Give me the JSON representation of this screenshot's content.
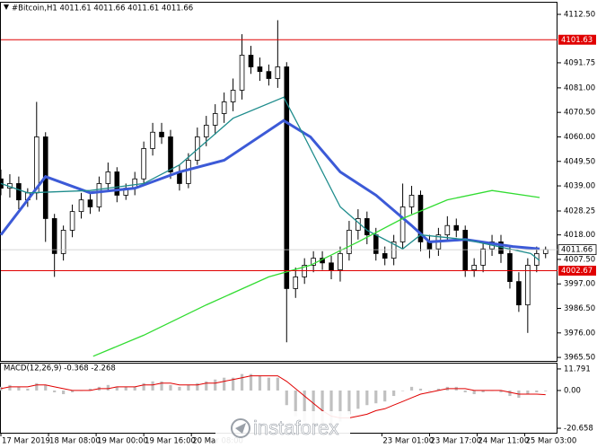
{
  "chart_data": [
    {
      "type": "candlestick",
      "title": "#Bitcoin,H1 4011.61 4011.66 4011.61 4011.66",
      "x": [
        0,
        3,
        6,
        9,
        12,
        15,
        18,
        21,
        24,
        27,
        30,
        33,
        36,
        39,
        42,
        45,
        48,
        51,
        54,
        57,
        60,
        63,
        66,
        69,
        72,
        75,
        78,
        81,
        84,
        87,
        90,
        93,
        96,
        99,
        102,
        105,
        108,
        111,
        114,
        117,
        120,
        123,
        126,
        129,
        132,
        135,
        138,
        141,
        144,
        147,
        150,
        153,
        156,
        159,
        162,
        165,
        168,
        171,
        174,
        177,
        180,
        183
      ],
      "open": [
        4042,
        4038,
        4040,
        4033,
        4036,
        4060,
        4025,
        4010,
        4020,
        4028,
        4033,
        4030,
        4040,
        4045,
        4035,
        4038,
        4042,
        4055,
        4062,
        4060,
        4045,
        4040,
        4050,
        4060,
        4065,
        4070,
        4075,
        4080,
        4095,
        4090,
        4088,
        4085,
        4090,
        3995,
        4000,
        4005,
        4008,
        4006,
        4003,
        4010,
        4020,
        4025,
        4018,
        4010,
        4008,
        4015,
        4030,
        4035,
        4015,
        4012,
        4018,
        4022,
        4020,
        4003,
        4005,
        4012,
        4015,
        4010,
        3998,
        3988,
        4005,
        4010
      ],
      "high": [
        4046,
        4044,
        4043,
        4038,
        4075,
        4062,
        4027,
        4022,
        4031,
        4036,
        4036,
        4043,
        4049,
        4047,
        4040,
        4045,
        4058,
        4066,
        4066,
        4063,
        4048,
        4053,
        4064,
        4069,
        4074,
        4079,
        4085,
        4104,
        4099,
        4094,
        4091,
        4110,
        4092,
        4004,
        4008,
        4011,
        4011,
        4009,
        4013,
        4024,
        4029,
        4028,
        4021,
        4013,
        4018,
        4040,
        4039,
        4037,
        4018,
        4021,
        4026,
        4025,
        4022,
        4008,
        4015,
        4018,
        4018,
        4013,
        4002,
        4008,
        4013,
        4013
      ],
      "low": [
        4035,
        4034,
        4029,
        4030,
        4033,
        4015,
        4000,
        4007,
        4017,
        4025,
        4027,
        4028,
        4037,
        4032,
        4033,
        4035,
        4040,
        4052,
        4057,
        4042,
        4037,
        4038,
        4048,
        4056,
        4061,
        4066,
        4071,
        4076,
        4087,
        4084,
        4082,
        4081,
        3972,
        3991,
        3997,
        4002,
        4003,
        3999,
        3998,
        4007,
        4016,
        4014,
        4007,
        4005,
        4005,
        4012,
        4027,
        4011,
        4008,
        4009,
        4015,
        4017,
        4000,
        4000,
        4002,
        4009,
        4006,
        3995,
        3985,
        3976,
        4002,
        4008
      ],
      "close": [
        4038,
        4040,
        4033,
        4036,
        4060,
        4025,
        4010,
        4020,
        4028,
        4033,
        4030,
        4040,
        4045,
        4035,
        4038,
        4042,
        4055,
        4062,
        4060,
        4045,
        4040,
        4050,
        4060,
        4065,
        4070,
        4075,
        4080,
        4095,
        4090,
        4088,
        4085,
        4090,
        3995,
        4000,
        4005,
        4008,
        4006,
        4003,
        4010,
        4020,
        4025,
        4018,
        4010,
        4008,
        4015,
        4030,
        4035,
        4015,
        4012,
        4018,
        4022,
        4020,
        4003,
        4005,
        4012,
        4015,
        4010,
        3998,
        3988,
        4005,
        4010,
        4011.66
      ],
      "color_up": "#ffffff",
      "color_down": "#000000",
      "series": [
        {
          "color": "#3c5ad7",
          "x": [
            0,
            15,
            30,
            45,
            60,
            75,
            95,
            104,
            114,
            126,
            138,
            144,
            156,
            172,
            181
          ],
          "values": [
            4018,
            4043,
            4036,
            4038,
            4045,
            4050,
            4067,
            4060,
            4045,
            4035,
            4022,
            4015,
            4016,
            4013,
            4012
          ]
        },
        {
          "color": "#1e8c8c",
          "x": [
            0,
            9,
            30,
            48,
            60,
            78,
            95,
            102,
            114,
            123,
            135,
            141,
            156,
            178,
            181
          ],
          "values": [
            4040,
            4036,
            4037,
            4040,
            4048,
            4068,
            4077,
            4060,
            4030,
            4020,
            4012,
            4018,
            4016,
            4010,
            4007
          ]
        },
        {
          "color": "#32dc32",
          "x": [
            31,
            48,
            69,
            90,
            104,
            120,
            135,
            150,
            165,
            181
          ],
          "values": [
            3966,
            3975,
            3988,
            4000,
            4005,
            4015,
            4025,
            4033,
            4037,
            4034
          ]
        }
      ],
      "hlines": [
        {
          "value": 4101.63,
          "color": "#e00000"
        },
        {
          "value": 4002.67,
          "color": "#e00000"
        }
      ],
      "last_price": 4011.66,
      "xlim": [
        0,
        187
      ],
      "ylim": [
        3964,
        4117.5
      ],
      "yticks": [
        {
          "value": 4112.5,
          "label": "4112.50"
        },
        4091.75,
        {
          "value": 4081,
          "label": "4081.00"
        },
        {
          "value": 4070.5,
          "label": "4070.50"
        },
        {
          "value": 4060,
          "label": "4060.00"
        },
        {
          "value": 4049.5,
          "label": "4049.50"
        },
        {
          "value": 4039,
          "label": "4039.00"
        },
        4028.25,
        {
          "value": 4018,
          "label": "4018.00"
        },
        {
          "value": 4007.5,
          "label": "4007.50"
        },
        {
          "value": 3997,
          "label": "3997.00"
        },
        {
          "value": 3986.5,
          "label": "3986.50"
        },
        {
          "value": 3976,
          "label": "3976.00"
        },
        {
          "value": 3965.5,
          "label": "3965.50"
        }
      ],
      "xticks": [
        {
          "value": 0,
          "label": "17 Mar 2019"
        },
        {
          "value": 16,
          "label": "18 Mar 08:00"
        },
        {
          "value": 32,
          "label": "19 Mar 00:00"
        },
        {
          "value": 48,
          "label": "19 Mar 16:00"
        },
        {
          "value": 64,
          "label": "20 Mar 08:00"
        },
        {
          "value": 128,
          "label": "23 Mar 01:00"
        },
        {
          "value": 144,
          "label": "23 Mar 17:00"
        },
        {
          "value": 160,
          "label": "24 Mar 11:00"
        },
        {
          "value": 176,
          "label": "25 Mar 03:00"
        }
      ]
    },
    {
      "type": "macd",
      "title": "MACD(12,26,9) -0.368 -2.268",
      "x": [
        0,
        3,
        6,
        9,
        12,
        15,
        18,
        21,
        24,
        27,
        30,
        33,
        36,
        39,
        42,
        45,
        48,
        51,
        54,
        57,
        60,
        63,
        66,
        69,
        72,
        75,
        78,
        81,
        84,
        87,
        90,
        93,
        96,
        99,
        102,
        105,
        108,
        111,
        114,
        117,
        120,
        123,
        126,
        129,
        132,
        135,
        138,
        141,
        144,
        147,
        150,
        153,
        156,
        159,
        162,
        165,
        168,
        171,
        174,
        177,
        180,
        183
      ],
      "series": [
        {
          "color": "#c0c0c0",
          "values": [
            2,
            3,
            2,
            1,
            4,
            3,
            -1,
            -2,
            -1,
            0,
            1,
            2,
            3,
            2,
            2,
            2,
            4,
            5,
            5,
            3,
            2,
            3,
            4,
            5,
            6,
            7,
            7,
            9,
            9,
            8,
            7,
            7,
            -8,
            -14,
            -17,
            -19,
            -20,
            -19,
            -17,
            -13,
            -10,
            -8,
            -7,
            -6,
            -3,
            0,
            2,
            1,
            0,
            1,
            2,
            2,
            -1,
            -2,
            -1,
            0,
            -1,
            -3,
            -4,
            -2,
            -1,
            -0.368
          ]
        },
        {
          "color": "#e00000",
          "values": [
            1,
            2,
            2,
            2,
            3,
            3,
            2,
            1,
            0,
            0,
            0,
            1,
            1,
            2,
            2,
            2,
            3,
            3,
            4,
            4,
            3,
            3,
            3,
            4,
            4,
            5,
            6,
            7,
            8,
            8,
            8,
            8,
            5,
            1,
            -3,
            -7,
            -11,
            -14,
            -15,
            -15,
            -14,
            -13,
            -11,
            -10,
            -8,
            -6,
            -4,
            -2,
            -1,
            0,
            1,
            1,
            1,
            0,
            0,
            0,
            0,
            -1,
            -2,
            -2,
            -2,
            -2.268
          ]
        }
      ],
      "xlim": [
        0,
        187
      ],
      "ylim": [
        -23.1,
        14.7
      ],
      "yticks": [
        11.791,
        {
          "value": 0,
          "label": "0.00"
        },
        -20.658
      ]
    }
  ],
  "watermark": "instaforex"
}
